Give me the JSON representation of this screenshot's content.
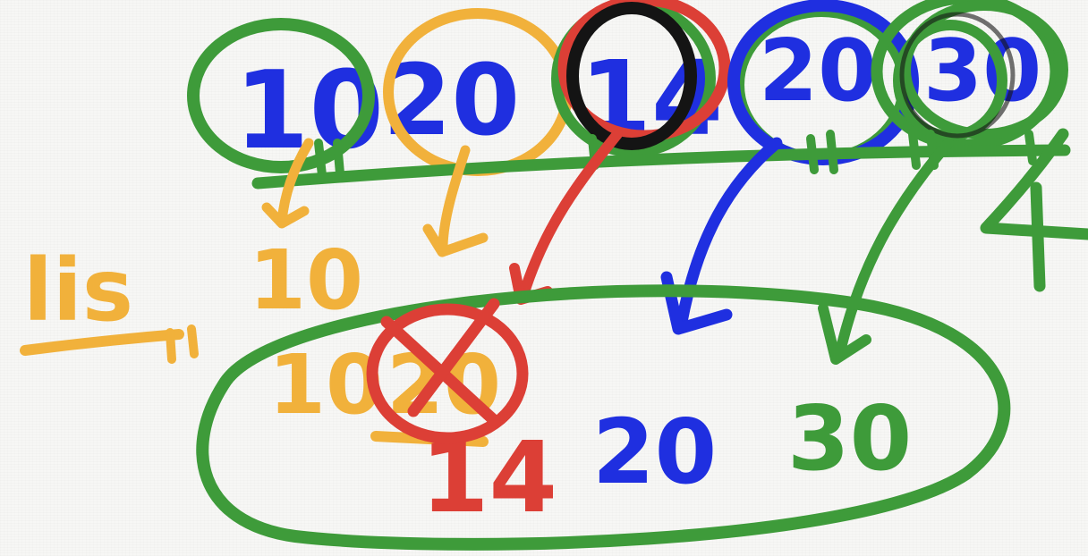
{
  "colors": {
    "blue": "#1f2fe0",
    "green": "#3e9b3a",
    "orange": "#f1b13b",
    "red": "#dc3f36",
    "black": "#141414"
  },
  "input_list": {
    "items": [
      "10",
      "20",
      "14",
      "20",
      "30"
    ]
  },
  "side_count": "4",
  "list_label": "lis",
  "intermediate_value": "10",
  "result_list": {
    "items": [
      "10",
      "20",
      "14",
      "20",
      "30"
    ]
  }
}
